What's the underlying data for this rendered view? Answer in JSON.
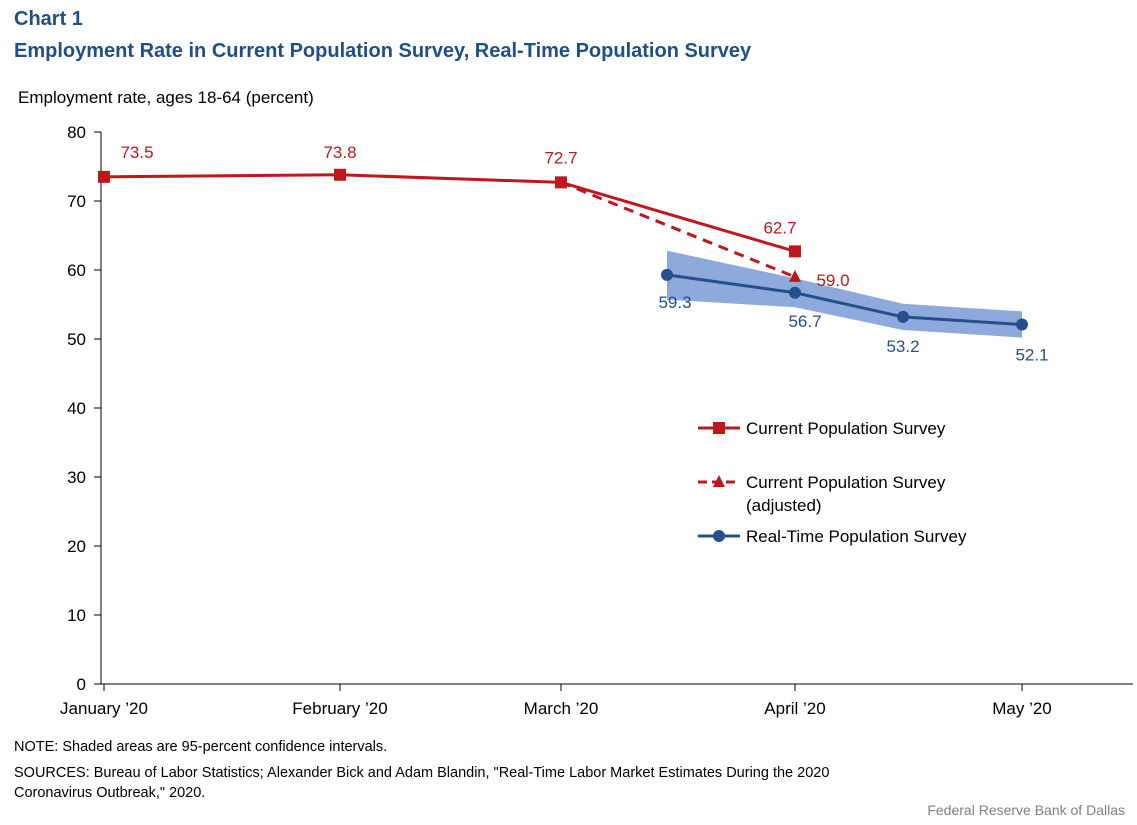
{
  "header": {
    "label": "Chart 1",
    "title": "Employment  Rate in Current Population Survey, Real-Time Population Survey"
  },
  "footer": {
    "note": "NOTE: Shaded areas are 95-percent confidence intervals.",
    "sources_line1": "SOURCES: Bureau of Labor Statistics; Alexander  Bick and Adam  Blandin, \"Real-Time Labor Market Estimates During the 2020",
    "sources_line2": "Coronavirus Outbreak,\" 2020.",
    "credit": "Federal Reserve  Bank of Dallas"
  },
  "colors": {
    "cps": "#c0171d",
    "rtps": "#274f8e",
    "band": "#8eaadc",
    "title": "#1f4e8c"
  },
  "chart_data": {
    "type": "line",
    "title": "Employment  Rate in Current Population Survey, Real-Time Population Survey",
    "ylabel": "Employment  rate, ages 18-64 (percent)",
    "xlabel": "",
    "ylim": [
      0,
      80
    ],
    "yticks": [
      0,
      10,
      20,
      30,
      40,
      50,
      60,
      70,
      80
    ],
    "x_tick_labels": [
      "January ’20",
      "February ’20",
      "March ’20",
      "April ’20",
      "May ’20"
    ],
    "grid": false,
    "legend_position": "center-right",
    "series": [
      {
        "name": "Current Population Survey",
        "style": "solid",
        "marker": "square",
        "color": "#c0171d",
        "points": [
          {
            "x": "January ’20",
            "y": 73.5,
            "label": "73.5"
          },
          {
            "x": "February ’20",
            "y": 73.8,
            "label": "73.8"
          },
          {
            "x": "March ’20",
            "y": 72.7,
            "label": "72.7"
          },
          {
            "x": "April ’20",
            "y": 62.7,
            "label": "62.7"
          }
        ]
      },
      {
        "name": "Current Population Survey (adjusted)",
        "legend_lines": [
          "Current Population Survey",
          "(adjusted)"
        ],
        "style": "dashed",
        "marker": "triangle",
        "color": "#c0171d",
        "points": [
          {
            "x": "March ’20",
            "y": 72.7,
            "label": ""
          },
          {
            "x": "April ’20",
            "y": 59.0,
            "label": "59.0"
          }
        ]
      },
      {
        "name": "Real-Time Population Survey",
        "style": "solid",
        "marker": "circle",
        "color": "#274f8e",
        "points": [
          {
            "x": "mid-March–April ’20",
            "y": 59.3,
            "label": "59.3",
            "ci": [
              55.7,
              62.8
            ]
          },
          {
            "x": "April ’20",
            "y": 56.7,
            "label": "56.7",
            "ci": [
              54.6,
              58.8
            ]
          },
          {
            "x": "mid-April–May ’20",
            "y": 53.2,
            "label": "53.2",
            "ci": [
              51.3,
              55.1
            ]
          },
          {
            "x": "May ’20",
            "y": 52.1,
            "label": "52.1",
            "ci": [
              50.2,
              54.0
            ]
          }
        ]
      }
    ]
  }
}
